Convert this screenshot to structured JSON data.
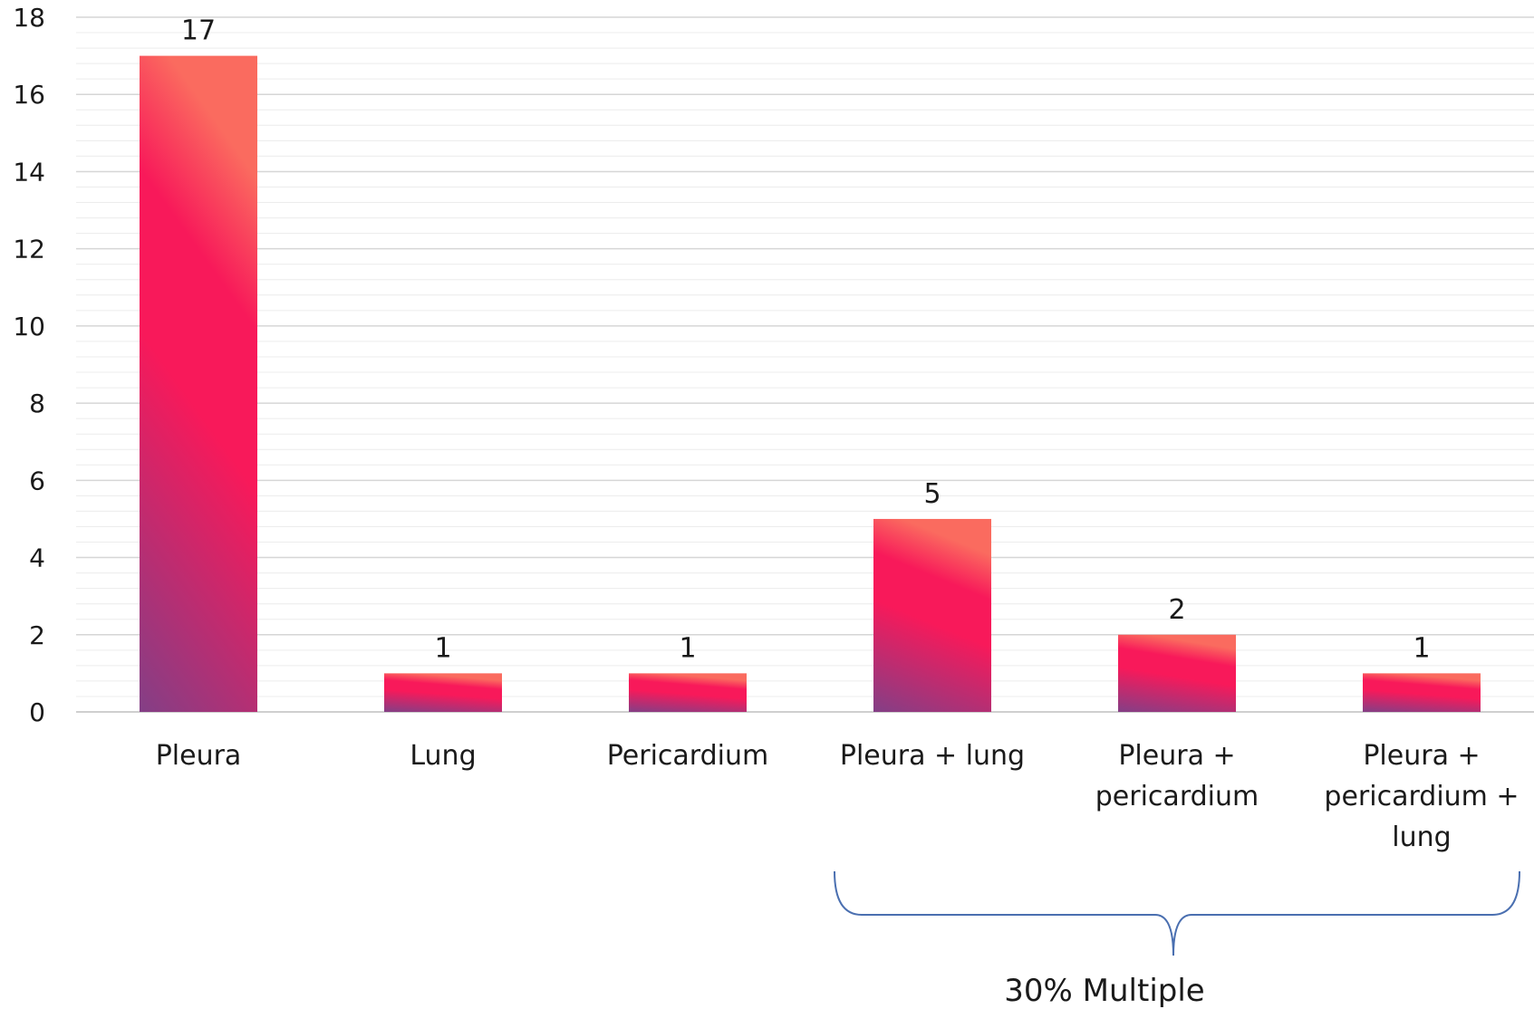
{
  "chart_data": {
    "type": "bar",
    "categories": [
      [
        "Pleura"
      ],
      [
        "Lung"
      ],
      [
        "Pericardium"
      ],
      [
        "Pleura + lung"
      ],
      [
        "Pleura +",
        "pericardium"
      ],
      [
        "Pleura +",
        "pericardium +",
        "lung"
      ]
    ],
    "values": [
      17,
      1,
      1,
      5,
      2,
      1
    ],
    "data_labels": [
      "17",
      "1",
      "1",
      "5",
      "2",
      "1"
    ],
    "y_ticks": [
      "0",
      "2",
      "4",
      "6",
      "8",
      "10",
      "12",
      "14",
      "16",
      "18"
    ],
    "ylim": [
      0,
      18
    ],
    "grid": true,
    "minor_grid_step": 0.4,
    "legend": "none",
    "annotation": {
      "text": "30% Multiple",
      "brace_categories": [
        3,
        4,
        5
      ]
    },
    "colors": {
      "bar_top": "#fa6b5f",
      "bar_mid": "#f8195a",
      "bar_bottom": "#833f86",
      "grid_major": "#d6d6d6",
      "grid_minor": "#ececec",
      "axis": "#cfcfcf",
      "brace": "#4a6fb0"
    }
  }
}
